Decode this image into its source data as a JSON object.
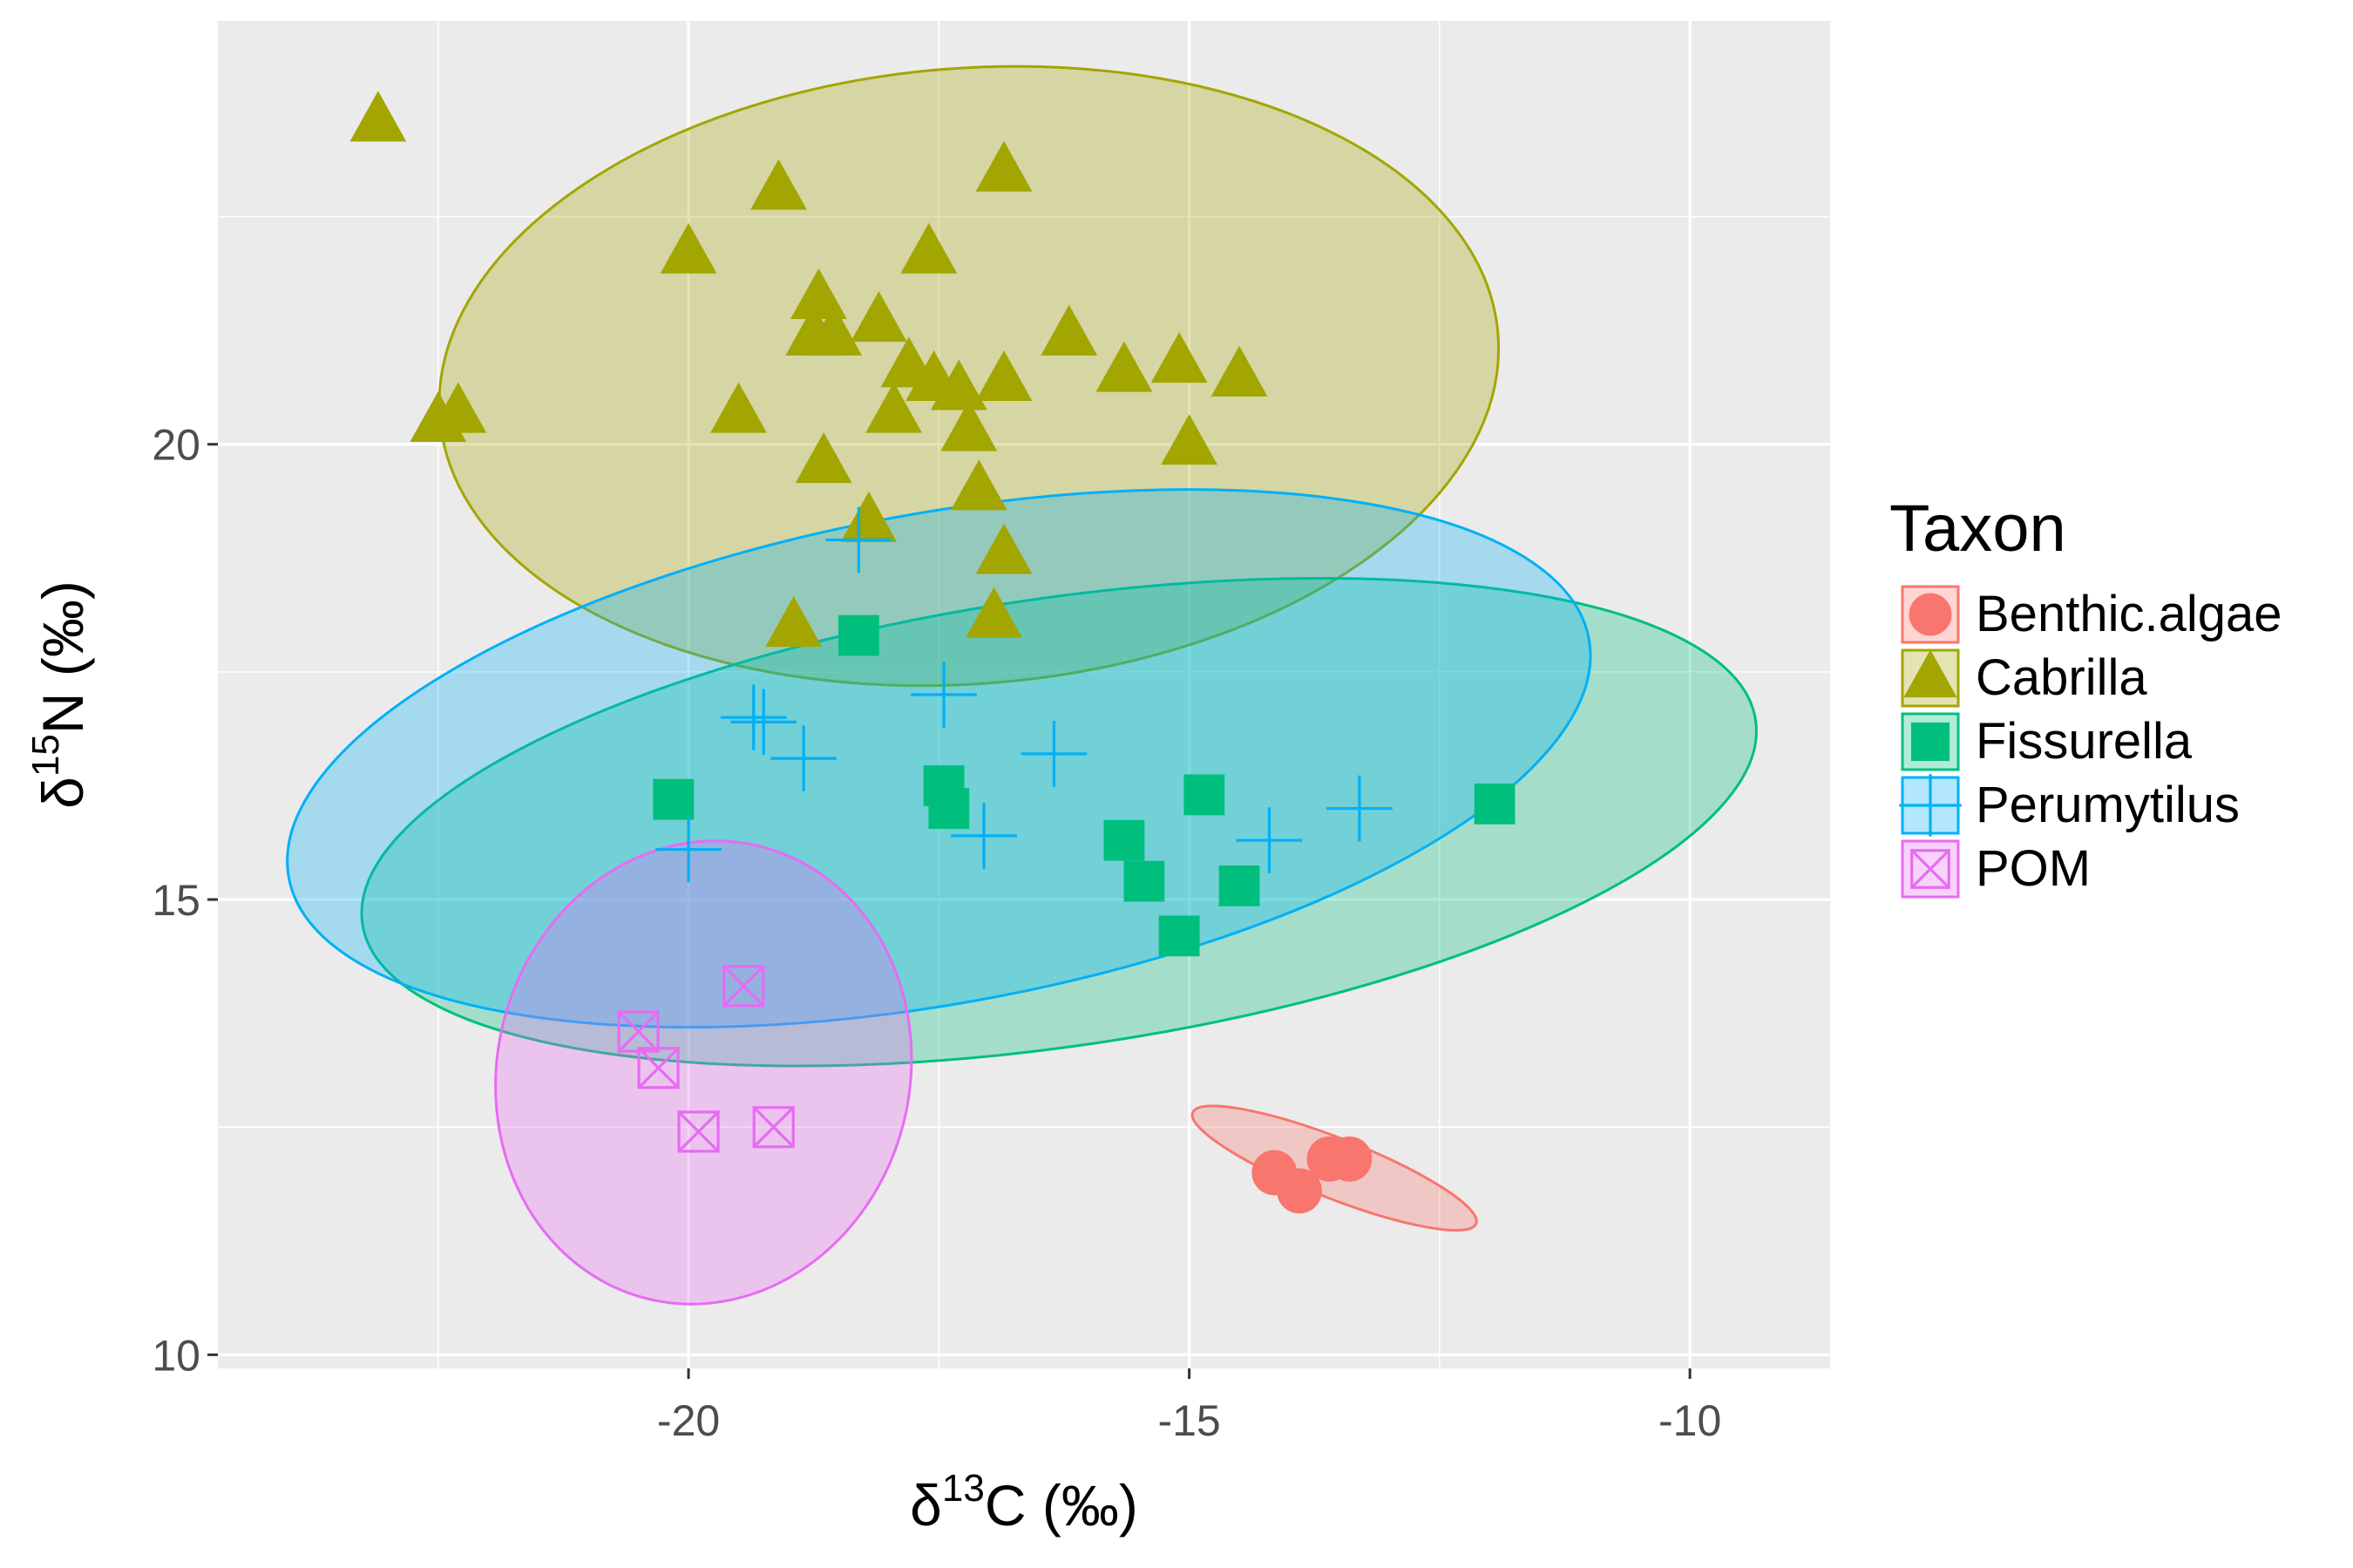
{
  "chart_data": {
    "type": "scatter",
    "title": "",
    "xlabel": {
      "prefix": "δ",
      "sup": "13",
      "suffix": "C (‰)"
    },
    "ylabel": {
      "prefix": "δ",
      "sup": "15",
      "suffix": "N (‰)"
    },
    "xlim": [
      -24.7,
      -8.6
    ],
    "ylim": [
      9.85,
      24.65
    ],
    "xticks": [
      -20,
      -15,
      -10
    ],
    "xtick_labels": [
      "-20",
      "-15",
      "-10"
    ],
    "yticks": [
      10,
      15,
      20
    ],
    "ytick_labels": [
      "10",
      "15",
      "20"
    ],
    "grid": true,
    "legend": {
      "title": "Taxon",
      "position": "right"
    },
    "series": [
      {
        "name": "Benthic.algae",
        "color": "#F8766D",
        "shape": "circle",
        "points": [
          [
            -14.15,
            12.0
          ],
          [
            -13.9,
            11.8
          ],
          [
            -13.6,
            12.15
          ],
          [
            -13.4,
            12.15
          ]
        ],
        "ellipse": {
          "cx": -13.55,
          "cy": 12.05,
          "rx": 1.52,
          "ry": 0.33,
          "angle_deg": 21.4
        }
      },
      {
        "name": "Cabrilla",
        "color": "#A3A500",
        "shape": "triangle",
        "points": [
          [
            -23.1,
            23.55
          ],
          [
            -22.5,
            20.25
          ],
          [
            -22.3,
            20.35
          ],
          [
            -20.0,
            22.1
          ],
          [
            -19.5,
            20.35
          ],
          [
            -19.1,
            22.8
          ],
          [
            -18.95,
            18.0
          ],
          [
            -18.75,
            21.2
          ],
          [
            -18.7,
            21.6
          ],
          [
            -18.55,
            21.2
          ],
          [
            -18.65,
            19.8
          ],
          [
            -18.2,
            19.15
          ],
          [
            -18.1,
            21.35
          ],
          [
            -17.95,
            20.35
          ],
          [
            -17.8,
            20.85
          ],
          [
            -17.55,
            20.7
          ],
          [
            -17.6,
            22.1
          ],
          [
            -17.3,
            20.6
          ],
          [
            -17.2,
            20.15
          ],
          [
            -17.1,
            19.5
          ],
          [
            -16.95,
            18.1
          ],
          [
            -16.85,
            18.8
          ],
          [
            -16.85,
            20.7
          ],
          [
            -16.85,
            23.0
          ],
          [
            -16.2,
            21.2
          ],
          [
            -15.65,
            20.8
          ],
          [
            -15.1,
            20.9
          ],
          [
            -15.0,
            20.0
          ],
          [
            -14.5,
            20.75
          ]
        ],
        "ellipse": {
          "cx": -17.2,
          "cy": 20.75,
          "rx": 5.3,
          "ry": 3.38,
          "angle_deg": -4.5
        }
      },
      {
        "name": "Fissurella",
        "color": "#00BF7D",
        "shape": "square",
        "points": [
          [
            -20.15,
            16.1
          ],
          [
            -18.3,
            17.9
          ],
          [
            -17.45,
            16.25
          ],
          [
            -17.4,
            16.0
          ],
          [
            -15.65,
            15.65
          ],
          [
            -15.45,
            15.2
          ],
          [
            -15.1,
            14.6
          ],
          [
            -14.85,
            16.15
          ],
          [
            -14.5,
            15.15
          ],
          [
            -11.95,
            16.05
          ]
        ],
        "ellipse": {
          "cx": -16.3,
          "cy": 15.85,
          "rx": 7.03,
          "ry": 2.46,
          "angle_deg": -8.3
        }
      },
      {
        "name": "Perumytilus",
        "color": "#00B0F6",
        "shape": "plus",
        "points": [
          [
            -20.0,
            15.55
          ],
          [
            -19.35,
            17.0
          ],
          [
            -19.25,
            16.95
          ],
          [
            -18.85,
            16.55
          ],
          [
            -18.3,
            18.95
          ],
          [
            -17.45,
            17.25
          ],
          [
            -17.05,
            15.7
          ],
          [
            -16.35,
            16.6
          ],
          [
            -14.2,
            15.65
          ],
          [
            -13.3,
            16.0
          ]
        ],
        "ellipse": {
          "cx": -17.5,
          "cy": 16.55,
          "rx": 6.6,
          "ry": 2.69,
          "angle_deg": -10.4
        }
      },
      {
        "name": "POM",
        "color": "#E76BF3",
        "shape": "square-x",
        "points": [
          [
            -20.5,
            13.55
          ],
          [
            -20.3,
            13.15
          ],
          [
            -19.9,
            12.45
          ],
          [
            -19.45,
            14.05
          ],
          [
            -19.15,
            12.5
          ]
        ],
        "ellipse": {
          "cx": -19.85,
          "cy": 13.1,
          "rx": 2.06,
          "ry": 2.56,
          "angle_deg": 14.2
        }
      }
    ]
  }
}
